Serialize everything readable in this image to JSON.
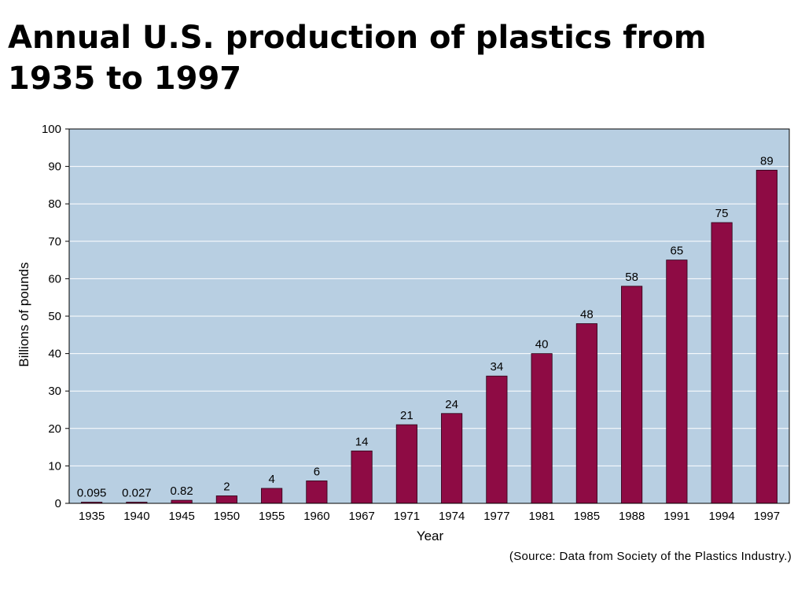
{
  "slide": {
    "title": "Annual U.S. production of plastics from 1935 to 1997"
  },
  "colors": {
    "plot_background": "#b8cfe2",
    "bar": "#8e0b44",
    "grid": "#ffffff",
    "axis": "#000000"
  },
  "chart_data": {
    "type": "bar",
    "title": "",
    "xlabel": "Year",
    "ylabel": "Billions of pounds",
    "ylim": [
      0,
      100
    ],
    "yticks": [
      0,
      10,
      20,
      30,
      40,
      50,
      60,
      70,
      80,
      90,
      100
    ],
    "grid": true,
    "categories": [
      "1935",
      "1940",
      "1945",
      "1950",
      "1955",
      "1960",
      "1967",
      "1971",
      "1974",
      "1977",
      "1981",
      "1985",
      "1988",
      "1991",
      "1994",
      "1997"
    ],
    "values": [
      0.095,
      0.027,
      0.82,
      2,
      4,
      6,
      14,
      21,
      24,
      34,
      40,
      48,
      58,
      65,
      75,
      89
    ],
    "data_labels": [
      "0.095",
      "0.027",
      "0.82",
      "2",
      "4",
      "6",
      "14",
      "21",
      "24",
      "34",
      "40",
      "48",
      "58",
      "65",
      "75",
      "89"
    ],
    "source": "(Source: Data from Society of the Plastics Industry.)"
  }
}
